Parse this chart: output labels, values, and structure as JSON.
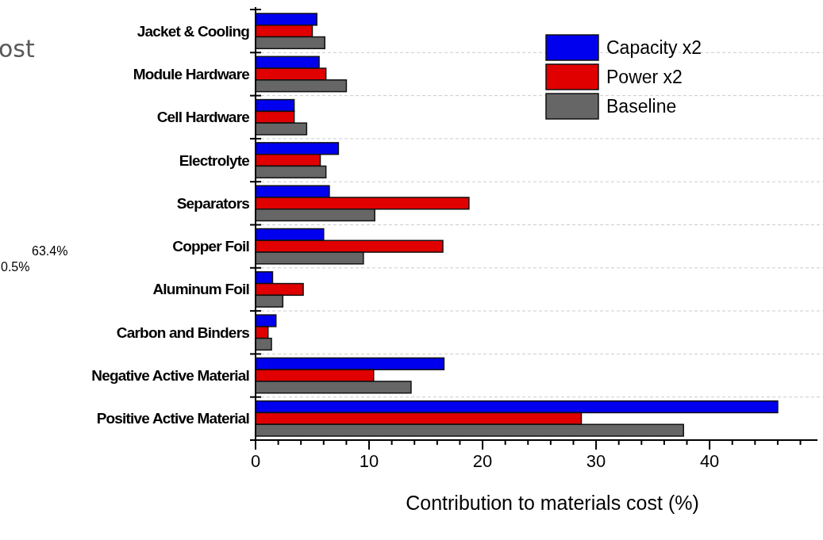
{
  "chart_data": {
    "type": "bar",
    "orientation": "horizontal",
    "xlabel": "Contribution to materials cost (%)",
    "categories": [
      "Jacket & Cooling",
      "Module Hardware",
      "Cell Hardware",
      "Electrolyte",
      "Separators",
      "Copper Foil",
      "Aluminum Foil",
      "Carbon and Binders",
      "Negative Active Material",
      "Positive Active Material"
    ],
    "series": [
      {
        "name": "Capacity x2",
        "color": "#0000ee",
        "values": [
          5.4,
          5.6,
          3.4,
          7.3,
          6.5,
          6.0,
          1.5,
          1.8,
          16.6,
          46.0
        ]
      },
      {
        "name": "Power x2",
        "color": "#e00000",
        "values": [
          5.0,
          6.2,
          3.4,
          5.7,
          18.8,
          16.5,
          4.2,
          1.1,
          10.4,
          28.7
        ]
      },
      {
        "name": "Baseline",
        "color": "#666666",
        "values": [
          6.1,
          8.0,
          4.5,
          6.2,
          10.5,
          9.5,
          2.4,
          1.4,
          13.7,
          37.7
        ]
      }
    ],
    "xlim": [
      0,
      49.5
    ],
    "xticks": [
      0,
      {
        "value": 2,
        "label": null
      },
      {
        "value": 4,
        "label": null
      },
      {
        "value": 6,
        "label": null
      },
      {
        "value": 8,
        "label": null
      },
      10,
      {
        "value": 12,
        "label": null
      },
      {
        "value": 14,
        "label": null
      },
      {
        "value": 16,
        "label": null
      },
      {
        "value": 18,
        "label": null
      },
      20,
      {
        "value": 22,
        "label": null
      },
      {
        "value": 24,
        "label": null
      },
      {
        "value": 26,
        "label": null
      },
      {
        "value": 28,
        "label": null
      },
      30,
      {
        "value": 32,
        "label": null
      },
      {
        "value": 34,
        "label": null
      },
      {
        "value": 36,
        "label": null
      },
      {
        "value": 38,
        "label": null
      },
      40,
      {
        "value": 42,
        "label": null
      },
      {
        "value": 44,
        "label": null
      },
      {
        "value": 46,
        "label": null
      },
      {
        "value": 48,
        "label": null
      }
    ],
    "grid": "y",
    "legend": "top right",
    "annotations": [
      "ost",
      "63.4%",
      "0.5%"
    ]
  }
}
